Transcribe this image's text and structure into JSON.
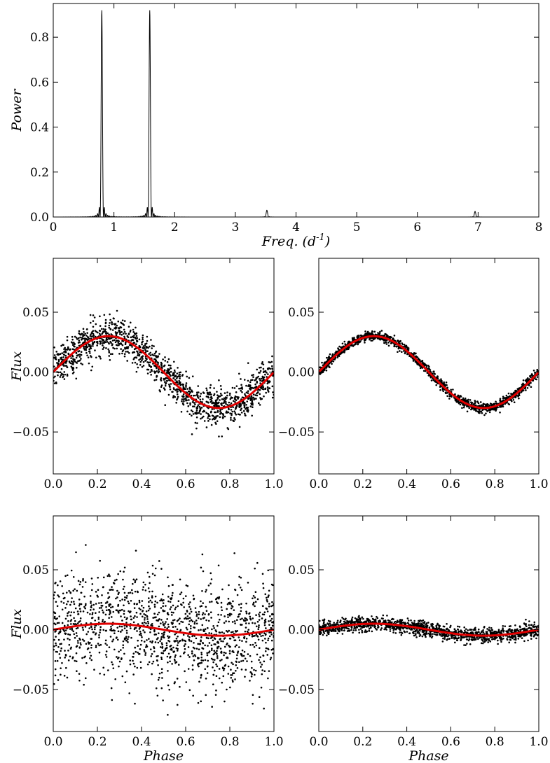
{
  "chart_data": [
    {
      "id": "periodogram",
      "type": "line",
      "title": "",
      "xlabel": "Freq. (d",
      "xlabel_sup": "-1",
      "xlabel_close": ")",
      "ylabel": "Power",
      "xlim": [
        0,
        8
      ],
      "ylim": [
        0,
        0.95
      ],
      "xticks": [
        0,
        1,
        2,
        3,
        4,
        5,
        6,
        7,
        8
      ],
      "xtick_labels": [
        "0",
        "1",
        "2",
        "3",
        "4",
        "5",
        "6",
        "7",
        "8"
      ],
      "yticks": [
        0.0,
        0.2,
        0.4,
        0.6,
        0.8
      ],
      "ytick_labels": [
        "0.0",
        "0.2",
        "0.4",
        "0.6",
        "0.8"
      ],
      "peaks": [
        {
          "freq": 0.8,
          "power": 0.92
        },
        {
          "freq": 1.59,
          "power": 0.92
        },
        {
          "freq": 3.52,
          "power": 0.03
        },
        {
          "freq": 6.95,
          "power": 0.025
        }
      ],
      "line_color": "#000000"
    },
    {
      "id": "phase-noisy-1",
      "type": "scatter",
      "xlabel": "",
      "ylabel": "Flux",
      "xlim": [
        0,
        1
      ],
      "ylim": [
        -0.085,
        0.095
      ],
      "xticks": [
        0,
        0.2,
        0.4,
        0.6,
        0.8,
        1.0
      ],
      "xtick_labels": [
        "0.0",
        "0.2",
        "0.4",
        "0.6",
        "0.8",
        "1.0"
      ],
      "yticks": [
        -0.05,
        0.0,
        0.05
      ],
      "ytick_labels": [
        "−0.05",
        "0.00",
        "0.05"
      ],
      "model": {
        "amplitude": 0.03,
        "offset": 0.0
      },
      "scatter_noise": 0.008,
      "n_points": 1400,
      "point_color": "#000000",
      "model_color": "#e00000"
    },
    {
      "id": "phase-clean-1",
      "type": "scatter",
      "xlabel": "",
      "ylabel": "",
      "xlim": [
        0,
        1
      ],
      "ylim": [
        -0.085,
        0.095
      ],
      "xticks": [
        0,
        0.2,
        0.4,
        0.6,
        0.8,
        1.0
      ],
      "xtick_labels": [
        "0.0",
        "0.2",
        "0.4",
        "0.6",
        "0.8",
        "1.0"
      ],
      "yticks": [
        -0.05,
        0.0,
        0.05
      ],
      "ytick_labels": [
        "−0.05",
        "0.00",
        "0.05"
      ],
      "model": {
        "amplitude": 0.03,
        "offset": 0.0
      },
      "scatter_noise": 0.002,
      "n_points": 1400,
      "point_color": "#000000",
      "model_color": "#e00000"
    },
    {
      "id": "phase-noisy-2",
      "type": "scatter",
      "xlabel": "Phase",
      "ylabel": "Flux",
      "xlim": [
        0,
        1
      ],
      "ylim": [
        -0.085,
        0.095
      ],
      "xticks": [
        0,
        0.2,
        0.4,
        0.6,
        0.8,
        1.0
      ],
      "xtick_labels": [
        "0.0",
        "0.2",
        "0.4",
        "0.6",
        "0.8",
        "1.0"
      ],
      "yticks": [
        -0.05,
        0.0,
        0.05
      ],
      "ytick_labels": [
        "−0.05",
        "0.00",
        "0.05"
      ],
      "model": {
        "amplitude": 0.005,
        "offset": 0.0
      },
      "scatter_noise": 0.022,
      "n_points": 1400,
      "point_color": "#000000",
      "model_color": "#e00000"
    },
    {
      "id": "phase-clean-2",
      "type": "scatter",
      "xlabel": "Phase",
      "ylabel": "",
      "xlim": [
        0,
        1
      ],
      "ylim": [
        -0.085,
        0.095
      ],
      "xticks": [
        0,
        0.2,
        0.4,
        0.6,
        0.8,
        1.0
      ],
      "xtick_labels": [
        "0.0",
        "0.2",
        "0.4",
        "0.6",
        "0.8",
        "1.0"
      ],
      "yticks": [
        -0.05,
        0.0,
        0.05
      ],
      "ytick_labels": [
        "−0.05",
        "0.00",
        "0.05"
      ],
      "model": {
        "amplitude": 0.005,
        "offset": 0.0
      },
      "scatter_noise": 0.003,
      "n_points": 1400,
      "point_color": "#000000",
      "model_color": "#e00000"
    }
  ]
}
